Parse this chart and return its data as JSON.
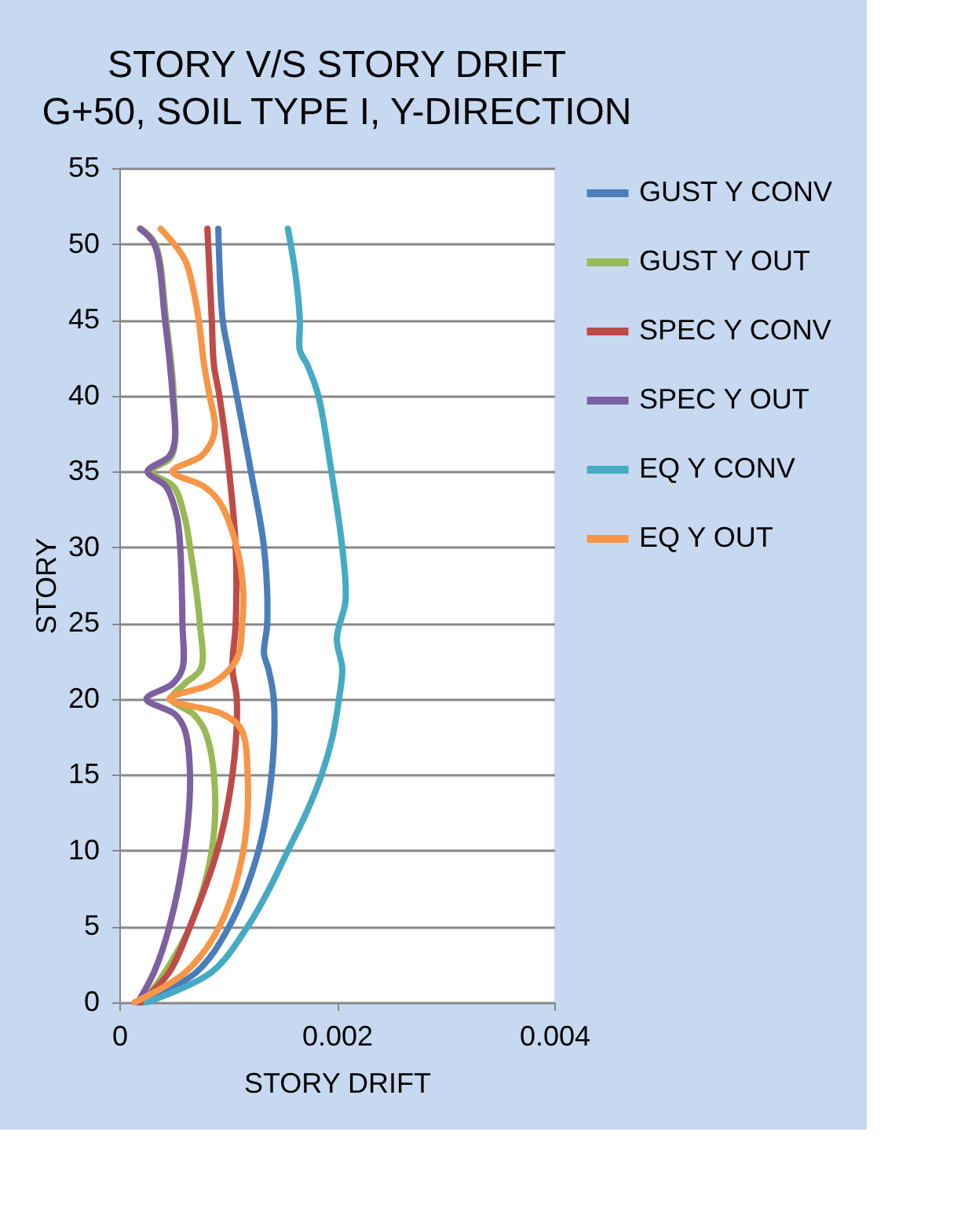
{
  "chart_data": {
    "type": "line",
    "title": "STORY V/S STORY DRIFT",
    "subtitle": "G+50, SOIL TYPE I, Y-DIRECTION",
    "xlabel": "STORY DRIFT",
    "ylabel": "STORY",
    "xlim": [
      0,
      0.004
    ],
    "xticks": [
      {
        "value": 0,
        "label": "0"
      },
      0.002,
      0.004
    ],
    "ylim": [
      0,
      55
    ],
    "yticks": [
      0,
      5,
      10,
      15,
      20,
      25,
      30,
      35,
      40,
      45,
      50,
      55
    ],
    "grid": "y",
    "legend": "right",
    "marker": "none",
    "line_style": "solid",
    "series": [
      {
        "name": "GUST Y CONV",
        "color": "#4a7ebb",
        "x": [
          0.00022,
          0.00071,
          0.00101,
          0.00128,
          0.0014,
          0.00142,
          0.00137,
          0.00133,
          0.00136,
          0.00133,
          0.00121,
          0.00108,
          0.001,
          0.00095,
          0.00091
        ],
        "values": [
          0,
          2,
          5,
          10,
          15,
          20,
          22,
          23,
          25,
          30,
          35,
          40,
          43,
          45,
          51
        ]
      },
      {
        "name": "GUST Y OUT",
        "color": "#98b954",
        "x": [
          0.00022,
          0.00042,
          0.00065,
          0.00085,
          0.00087,
          0.00078,
          0.00068,
          0.00048,
          0.0006,
          0.00075,
          0.00074,
          0.00065,
          0.0006,
          0.0005,
          0.00029,
          0.00048,
          0.0005,
          0.00043,
          0.00033,
          0.0002
        ],
        "values": [
          0,
          2,
          5,
          10,
          15,
          18,
          19,
          20,
          21,
          22,
          25,
          30,
          32,
          34,
          35,
          36,
          40,
          45,
          50,
          51
        ]
      },
      {
        "name": "SPEC Y CONV",
        "color": "#be4b48",
        "x": [
          0.0002,
          0.00046,
          0.00065,
          0.0009,
          0.00104,
          0.00108,
          0.00104,
          0.00107,
          0.00107,
          0.00101,
          0.00092,
          0.00087,
          0.00085,
          0.00081
        ],
        "values": [
          0,
          2,
          5,
          10,
          15,
          20,
          22,
          25,
          30,
          35,
          40,
          42,
          45,
          51
        ]
      },
      {
        "name": "SPEC Y OUT",
        "color": "#7d60a0",
        "x": [
          0.00017,
          0.00032,
          0.00046,
          0.0006,
          0.00065,
          0.0006,
          0.00051,
          0.00025,
          0.00049,
          0.00058,
          0.00058,
          0.00056,
          0.00053,
          0.00043,
          0.00026,
          0.00046,
          0.00051,
          0.00049,
          0.00042,
          0.00032,
          0.00019
        ],
        "values": [
          0,
          2,
          5,
          10,
          15,
          18,
          19,
          20,
          21,
          22,
          25,
          30,
          32,
          34,
          35,
          36,
          37,
          40,
          45,
          50,
          51
        ]
      },
      {
        "name": "EQ Y CONV",
        "color": "#46aac5",
        "x": [
          0.00025,
          0.00085,
          0.00118,
          0.00138,
          0.00155,
          0.00172,
          0.00186,
          0.00196,
          0.00202,
          0.00205,
          0.002,
          0.00208,
          0.00205,
          0.00195,
          0.00183,
          0.00173,
          0.00166,
          0.00166,
          0.00162,
          0.00155
        ],
        "values": [
          0,
          2,
          5,
          7.5,
          10,
          12.5,
          15,
          17.5,
          20,
          22,
          24,
          26.5,
          30,
          35,
          40,
          42,
          43,
          45,
          48,
          51
        ]
      },
      {
        "name": "EQ Y OUT",
        "color": "#f79646",
        "x": [
          0.00014,
          0.00061,
          0.00092,
          0.00114,
          0.00118,
          0.00112,
          0.00095,
          0.00046,
          0.00085,
          0.00102,
          0.0011,
          0.00113,
          0.00114,
          0.00108,
          0.00092,
          0.00078,
          0.00049,
          0.00075,
          0.00085,
          0.00088,
          0.00083,
          0.00078,
          0.00073,
          0.00068,
          0.0006,
          0.00038
        ],
        "values": [
          0,
          2,
          5,
          10,
          15,
          18,
          19,
          20,
          21,
          22,
          23,
          25,
          27,
          30,
          33,
          34,
          35,
          36,
          37,
          38,
          40,
          42,
          45,
          47,
          49,
          51
        ]
      }
    ]
  }
}
